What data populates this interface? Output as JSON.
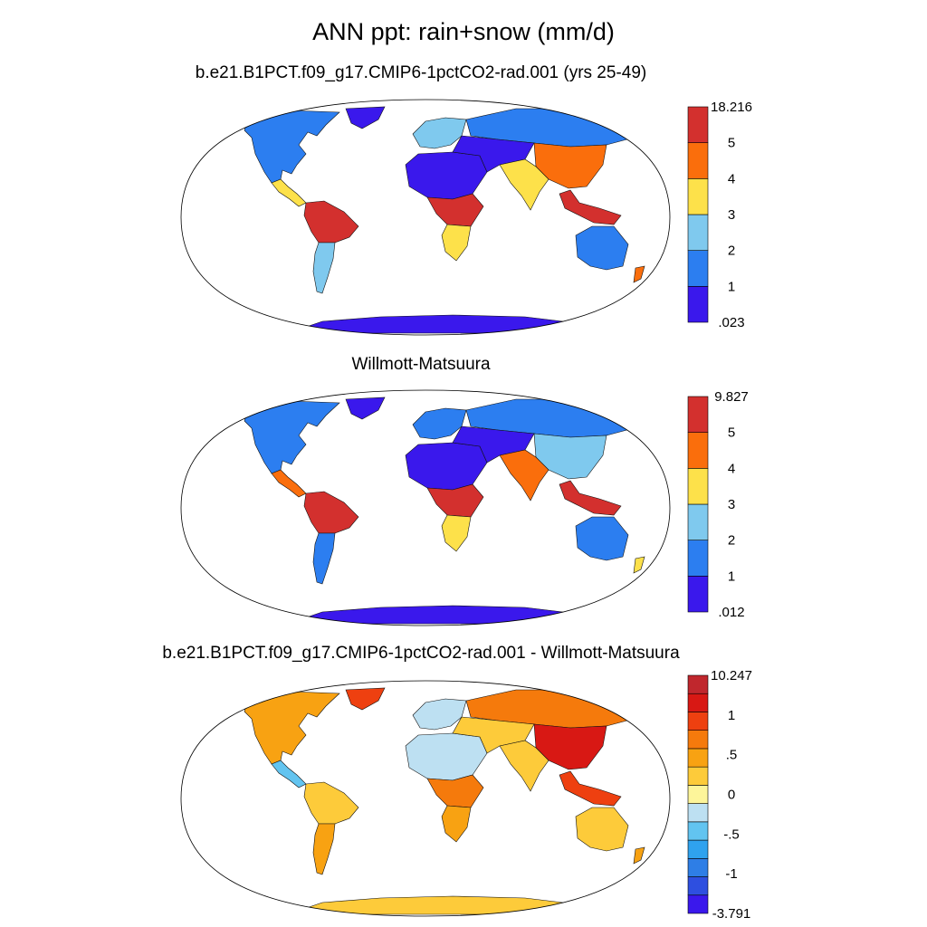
{
  "title": "ANN ppt: rain+snow (mm/d)",
  "panels": [
    {
      "id": "model",
      "title": "b.e21.B1PCT.f09_g17.CMIP6-1pctCO2-rad.001 (yrs 25-49)",
      "colorbar": {
        "colors": [
          "#3a18ec",
          "#2c7ef0",
          "#7fc9ee",
          "#fde14a",
          "#fa6e0c",
          "#d3302e"
        ],
        "labels": [
          ".023",
          "1",
          "2",
          "3",
          "4",
          "5",
          "18.216"
        ]
      },
      "region_colors": {
        "north_america": "#2c7ef0",
        "greenland": "#3a18ec",
        "central_america": "#fde14a",
        "south_america": "#d3302e",
        "south_cone": "#7fc9ee",
        "europe": "#7fc9ee",
        "north_africa": "#3a18ec",
        "central_africa": "#d3302e",
        "southern_africa": "#fde14a",
        "siberia": "#2c7ef0",
        "central_asia": "#3a18ec",
        "east_asia": "#fa6e0c",
        "south_asia": "#fde14a",
        "maritime": "#d3302e",
        "australia": "#2c7ef0",
        "new_zealand": "#fa6e0c",
        "antarctica": "#3a18ec"
      }
    },
    {
      "id": "obs",
      "title": "Willmott-Matsuura",
      "colorbar": {
        "colors": [
          "#3a18ec",
          "#2c7ef0",
          "#7fc9ee",
          "#fde14a",
          "#fa6e0c",
          "#d3302e"
        ],
        "labels": [
          ".012",
          "1",
          "2",
          "3",
          "4",
          "5",
          "9.827"
        ]
      },
      "region_colors": {
        "north_america": "#2c7ef0",
        "greenland": "#3a18ec",
        "central_america": "#fa6e0c",
        "south_america": "#d3302e",
        "south_cone": "#2c7ef0",
        "europe": "#2c7ef0",
        "north_africa": "#3a18ec",
        "central_africa": "#d3302e",
        "southern_africa": "#fde14a",
        "siberia": "#2c7ef0",
        "central_asia": "#3a18ec",
        "east_asia": "#7fc9ee",
        "south_asia": "#fa6e0c",
        "maritime": "#d3302e",
        "australia": "#2c7ef0",
        "new_zealand": "#fde14a",
        "antarctica": "#3a18ec"
      }
    },
    {
      "id": "diff",
      "title": "b.e21.B1PCT.f09_g17.CMIP6-1pctCO2-rad.001 - Willmott-Matsuura",
      "colorbar": {
        "colors": [
          "#3a18ec",
          "#2e4fe0",
          "#2e7ee6",
          "#2fa2ee",
          "#62c4f0",
          "#bde0f2",
          "#fdf59a",
          "#fdcb3a",
          "#f8a212",
          "#f57a0c",
          "#ee4010",
          "#d81814",
          "#c0272d"
        ],
        "labels": [
          "-3.791",
          "-1",
          "-.5",
          "0",
          ".5",
          "1",
          "10.247"
        ]
      },
      "region_colors": {
        "north_america": "#f8a212",
        "greenland": "#ee4010",
        "central_america": "#62c4f0",
        "south_america": "#fdcb3a",
        "south_cone": "#f8a212",
        "europe": "#bde0f2",
        "north_africa": "#bde0f2",
        "central_africa": "#f57a0c",
        "southern_africa": "#f8a212",
        "siberia": "#f57a0c",
        "central_asia": "#fdcb3a",
        "east_asia": "#d81814",
        "south_asia": "#fdcb3a",
        "maritime": "#ee4010",
        "australia": "#fdcb3a",
        "new_zealand": "#f8a212",
        "antarctica": "#fdcb3a"
      }
    }
  ]
}
